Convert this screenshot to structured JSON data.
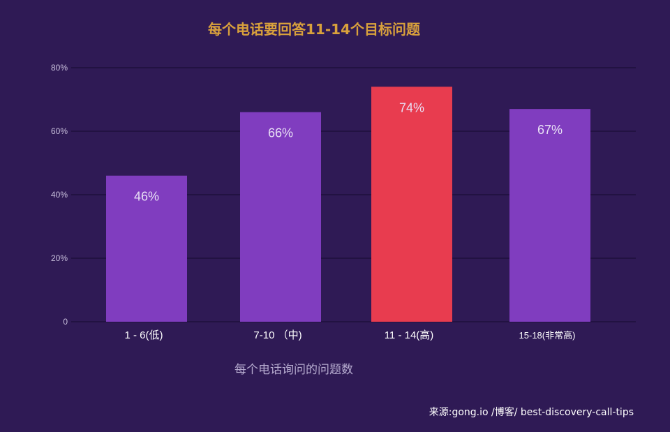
{
  "chart_data": {
    "type": "bar",
    "title": "每个电话要回答11-14个目标问题",
    "xlabel": "每个电话询问的问题数",
    "ylabel": "",
    "categories": [
      "1 - 6(低)",
      "7-10 （中)",
      "11 - 14(高)",
      "15-18(非常高)"
    ],
    "values": [
      46,
      66,
      74,
      67
    ],
    "value_labels": [
      "46%",
      "66%",
      "74%",
      "67%"
    ],
    "ylim": [
      0,
      80
    ],
    "yticks": [
      0,
      20,
      40,
      60,
      80
    ],
    "ytick_labels": [
      "0",
      "20%",
      "40%",
      "60%",
      "80%"
    ],
    "grid": true,
    "bar_colors": [
      "#803dbf",
      "#803dbf",
      "#e83c4f",
      "#803dbf"
    ],
    "highlight_index": 2
  },
  "source": "来源:gong.io /博客/ best-discovery-call-tips",
  "colors": {
    "background": "#2f1a55",
    "title": "#d9a13c",
    "bar": "#803dbf",
    "highlight": "#e83c4f",
    "grid": "#1f0f3d"
  }
}
